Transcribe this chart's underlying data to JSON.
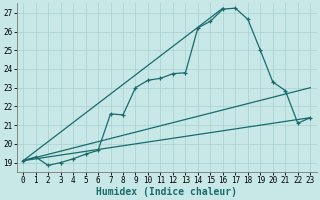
{
  "xlabel": "Humidex (Indice chaleur)",
  "bg_color": "#c8e8e8",
  "grid_color": "#a8d0d0",
  "line_color": "#1a6b6b",
  "xlim": [
    -0.5,
    23.5
  ],
  "ylim": [
    18.5,
    27.5
  ],
  "xticks": [
    0,
    1,
    2,
    3,
    4,
    5,
    6,
    7,
    8,
    9,
    10,
    11,
    12,
    13,
    14,
    15,
    16,
    17,
    18,
    19,
    20,
    21,
    22,
    23
  ],
  "yticks": [
    19,
    20,
    21,
    22,
    23,
    24,
    25,
    26,
    27
  ],
  "main_x": [
    0,
    1,
    2,
    3,
    4,
    5,
    6,
    7,
    8,
    9,
    10,
    11,
    12,
    13,
    14,
    15,
    16,
    17,
    18,
    19,
    20,
    21,
    22,
    23
  ],
  "main_y": [
    19.1,
    19.3,
    18.85,
    19.0,
    19.2,
    19.45,
    19.65,
    21.6,
    21.55,
    23.0,
    23.4,
    23.5,
    23.75,
    23.8,
    26.2,
    26.55,
    27.2,
    27.25,
    26.65,
    25.0,
    23.3,
    22.85,
    21.1,
    21.4
  ],
  "straight_lines": [
    {
      "x": [
        0,
        16
      ],
      "y": [
        19.1,
        27.25
      ]
    },
    {
      "x": [
        0,
        23
      ],
      "y": [
        19.1,
        23.0
      ]
    },
    {
      "x": [
        0,
        23
      ],
      "y": [
        19.1,
        21.4
      ]
    }
  ],
  "xlabel_fontsize": 7,
  "tick_fontsize": 5.5,
  "linewidth": 0.9
}
